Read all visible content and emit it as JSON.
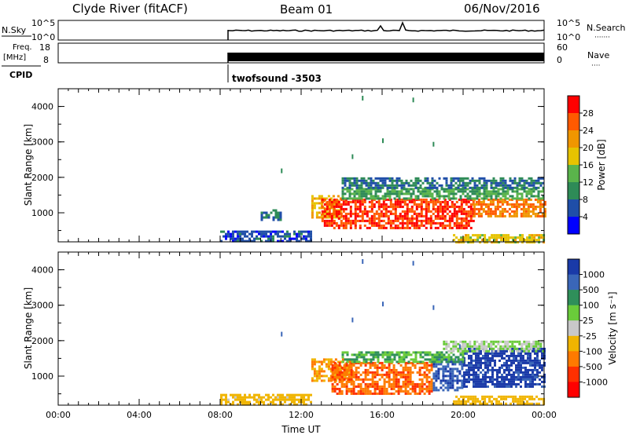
{
  "header": {
    "station": "Clyde River (fitACF)",
    "beam": "Beam 01",
    "date": "06/Nov/2016"
  },
  "nsky_panel": {
    "left_label": "N.Sky",
    "left_ticks": [
      "10^5",
      "10^0"
    ],
    "right_label": "N.Search",
    "right_ticks": [
      "10^5",
      "10^0"
    ],
    "right_legend": "·······"
  },
  "freq_panel": {
    "left_label_1": "Freq.",
    "left_label_2": "[MHz]",
    "left_ticks": [
      "18",
      "8"
    ],
    "right_label": "Nave",
    "right_ticks": [
      "60",
      "0"
    ],
    "right_legend": "····"
  },
  "cpid": {
    "label": "CPID",
    "program": "twofsound -3503"
  },
  "colors": {
    "axis": "#000000",
    "background": "#ffffff"
  },
  "chart_data": [
    {
      "type": "heatmap",
      "quantity": "power",
      "xlabel": "",
      "ylabel": "Slant Range [km]",
      "y_ticks": [
        "4000",
        "3000",
        "2000",
        "1000"
      ],
      "ylim": [
        180,
        4500
      ],
      "colorbar": {
        "label": "Power [dB]",
        "tick_labels": [
          "28",
          "24",
          "20",
          "16",
          "12",
          "8",
          "4"
        ],
        "colors": [
          "#ff0000",
          "#ff5a00",
          "#f09600",
          "#e6c300",
          "#5ab44b",
          "#2e8b57",
          "#1f4ea8",
          "#0000ff"
        ]
      },
      "regions": [
        {
          "t": [
            8.0,
            12.5
          ],
          "range": [
            200,
            500
          ],
          "value": 6
        },
        {
          "t": [
            10.0,
            11.0
          ],
          "range": [
            800,
            1100
          ],
          "value": 8
        },
        {
          "t": [
            12.5,
            14.0
          ],
          "range": [
            900,
            1500
          ],
          "value": 20
        },
        {
          "t": [
            13.0,
            20.5
          ],
          "range": [
            600,
            1400
          ],
          "value": 28
        },
        {
          "t": [
            20.5,
            24.0
          ],
          "range": [
            900,
            1400
          ],
          "value": 24
        },
        {
          "t": [
            14.0,
            24.0
          ],
          "range": [
            1400,
            1700
          ],
          "value": 12
        },
        {
          "t": [
            14.0,
            24.0
          ],
          "range": [
            1700,
            2000
          ],
          "value": 8
        },
        {
          "t": [
            19.5,
            24.0
          ],
          "range": [
            200,
            400
          ],
          "value": 18
        }
      ]
    },
    {
      "type": "heatmap",
      "quantity": "velocity",
      "xlabel": "Time UT",
      "ylabel": "Slant Range [km]",
      "x_ticks": [
        "00:00",
        "04:00",
        "08:00",
        "12:00",
        "16:00",
        "20:00",
        "00:00"
      ],
      "y_ticks": [
        "4000",
        "3000",
        "2000",
        "1000"
      ],
      "ylim": [
        180,
        4500
      ],
      "colorbar": {
        "label": "Velocity [m s⁻¹]",
        "tick_labels": [
          "1000",
          "500",
          "100",
          "25",
          "-25",
          "-100",
          "-500",
          "-1000"
        ],
        "colors": [
          "#1a3aa8",
          "#3a66b8",
          "#2f8f5a",
          "#6acb3a",
          "#c8c8c8",
          "#f0b400",
          "#ff7a00",
          "#ff3000",
          "#ff0000"
        ]
      },
      "regions": [
        {
          "t": [
            8.0,
            12.5
          ],
          "range": [
            200,
            500
          ],
          "value": -100
        },
        {
          "t": [
            12.5,
            14.5
          ],
          "range": [
            900,
            1500
          ],
          "value": -300
        },
        {
          "t": [
            13.5,
            18.5
          ],
          "range": [
            500,
            1400
          ],
          "value": -700
        },
        {
          "t": [
            18.5,
            20.0
          ],
          "range": [
            600,
            1500
          ],
          "value": 700
        },
        {
          "t": [
            20.0,
            24.0
          ],
          "range": [
            700,
            1800
          ],
          "value": 900
        },
        {
          "t": [
            14.0,
            20.0
          ],
          "range": [
            1400,
            1700
          ],
          "value": 60
        },
        {
          "t": [
            19.0,
            24.0
          ],
          "range": [
            1700,
            2000
          ],
          "value": 0
        },
        {
          "t": [
            19.5,
            24.0
          ],
          "range": [
            200,
            450
          ],
          "value": -150
        }
      ]
    }
  ]
}
